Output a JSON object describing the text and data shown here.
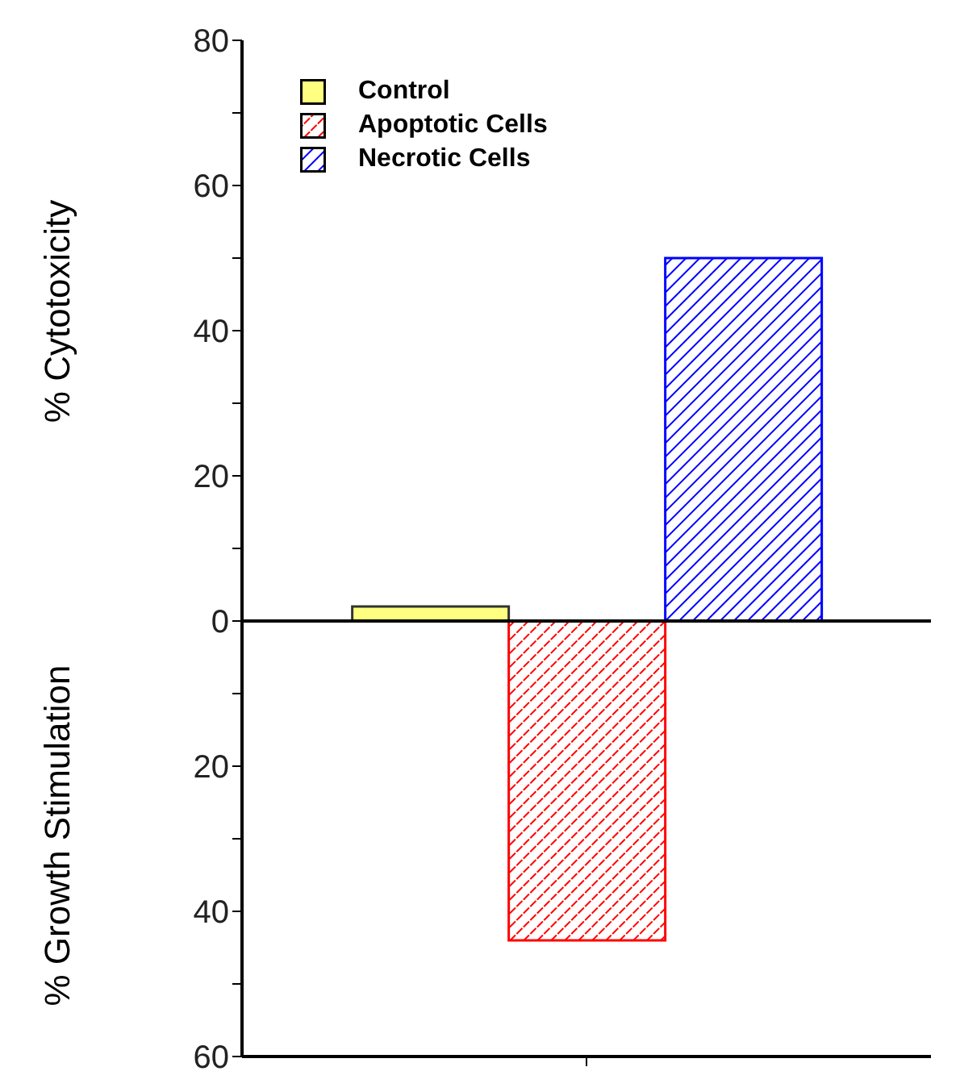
{
  "chart_data": {
    "type": "bar",
    "annotations": [
      "% Cytotoxicity",
      "% Growth Stimulation"
    ],
    "categories": [
      null
    ],
    "series": [
      {
        "name": "Control",
        "color": "#ffff80",
        "values": [
          2
        ]
      },
      {
        "name": "Apoptotic Cells",
        "color": "#ff0000",
        "values": [
          -44
        ]
      },
      {
        "name": "Necrotic Cells",
        "color": "#0000ff",
        "values": [
          50
        ]
      }
    ],
    "ylim": [
      -60,
      80
    ],
    "yticks": [
      {
        "value": -60,
        "label": "60"
      },
      {
        "value": -50,
        "label": null
      },
      {
        "value": -40,
        "label": "40"
      },
      {
        "value": -30,
        "label": null
      },
      {
        "value": -20,
        "label": "20"
      },
      {
        "value": -10,
        "label": null
      },
      0,
      {
        "value": 10,
        "label": null
      },
      20,
      {
        "value": 30,
        "label": null
      },
      40,
      {
        "value": 50,
        "label": null
      },
      60,
      {
        "value": 70,
        "label": null
      },
      80
    ],
    "legend": "top left"
  }
}
